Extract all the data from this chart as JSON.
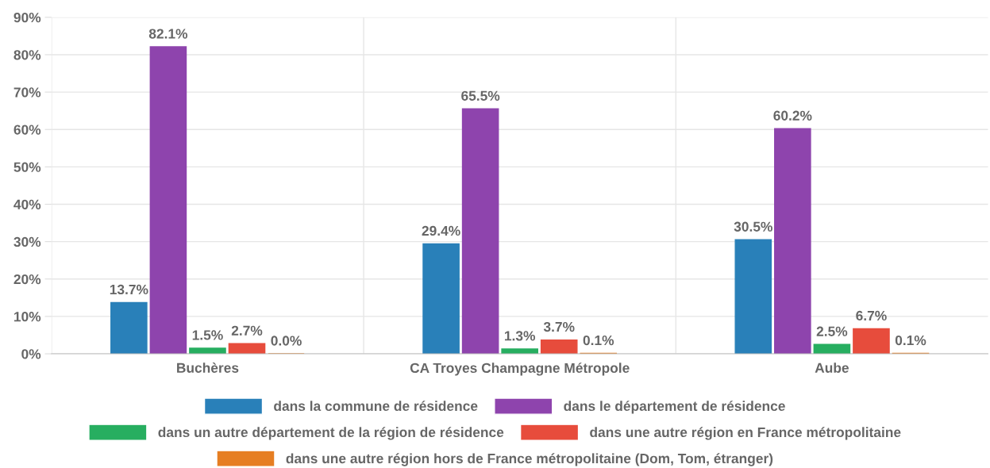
{
  "chart_data": {
    "type": "bar",
    "categories": [
      "Buchères",
      "CA Troyes Champagne Métropole",
      "Aube"
    ],
    "series": [
      {
        "name": "dans la commune de résidence",
        "color": "#2980b9",
        "values": [
          13.7,
          29.4,
          30.5
        ],
        "value_labels": [
          "13.7%",
          "29.4%",
          "30.5%"
        ]
      },
      {
        "name": "dans le département de résidence",
        "color": "#8e44ad",
        "values": [
          82.1,
          65.5,
          60.2
        ],
        "value_labels": [
          "82.1%",
          "65.5%",
          "60.2%"
        ]
      },
      {
        "name": "dans un autre département de la région de résidence",
        "color": "#27ae60",
        "values": [
          1.5,
          1.3,
          2.5
        ],
        "value_labels": [
          "1.5%",
          "1.3%",
          "2.5%"
        ]
      },
      {
        "name": "dans une autre région en France métropolitaine",
        "color": "#e74c3c",
        "values": [
          2.7,
          3.7,
          6.7
        ],
        "value_labels": [
          "2.7%",
          "3.7%",
          "6.7%"
        ]
      },
      {
        "name": "dans une autre région hors de France métropolitaine (Dom, Tom, étranger)",
        "color": "#e67e22",
        "values": [
          0.0,
          0.1,
          0.1
        ],
        "value_labels": [
          "0.0%",
          "0.1%",
          "0.1%"
        ]
      }
    ],
    "ylim": [
      0,
      90
    ],
    "yticks": [
      {
        "value": 0,
        "label": "0%"
      },
      {
        "value": 10,
        "label": "10%"
      },
      {
        "value": 20,
        "label": "20%"
      },
      {
        "value": 30,
        "label": "30%"
      },
      {
        "value": 40,
        "label": "40%"
      },
      {
        "value": 50,
        "label": "50%"
      },
      {
        "value": 60,
        "label": "60%"
      },
      {
        "value": 70,
        "label": "70%"
      },
      {
        "value": 80,
        "label": "80%"
      },
      {
        "value": 90,
        "label": "90%"
      }
    ],
    "grid": true,
    "legend": "bottom"
  }
}
